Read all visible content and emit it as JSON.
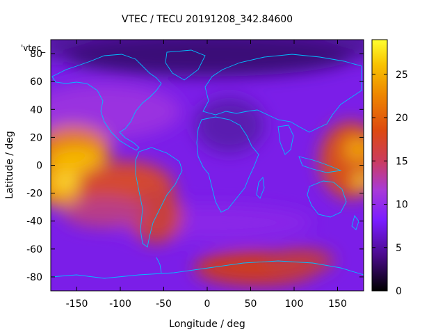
{
  "chart_data": {
    "type": "heatmap",
    "title": "VTEC / TECU 20191208_342.84600",
    "xlabel": "Longitude / deg",
    "ylabel": "Latitude / deg",
    "legend_label": "'vtec_",
    "xlim": [
      -180,
      180
    ],
    "ylim": [
      -90,
      90
    ],
    "x_ticks": [
      -150,
      -100,
      -50,
      0,
      50,
      100,
      150
    ],
    "y_ticks": [
      -80,
      -60,
      -40,
      -20,
      0,
      20,
      40,
      60,
      80
    ],
    "colorbar": {
      "range": [
        0,
        29
      ],
      "ticks": [
        0,
        5,
        10,
        15,
        20,
        25
      ],
      "palette": [
        "#000000",
        "#4a0a8a",
        "#7a1cff",
        "#a83ad8",
        "#cc3c5c",
        "#dd4a10",
        "#ee8600",
        "#f8c200",
        "#ffff30"
      ]
    },
    "coastline_color": "#00bfff",
    "grid": false,
    "regions": [
      {
        "lon": -155,
        "lat": 15,
        "value": 23
      },
      {
        "lon": -150,
        "lat": -15,
        "value": 27
      },
      {
        "lon": -100,
        "lat": -15,
        "value": 20
      },
      {
        "lon": -70,
        "lat": -40,
        "value": 15
      },
      {
        "lon": 170,
        "lat": 5,
        "value": 22
      },
      {
        "lon": 50,
        "lat": -75,
        "value": 16
      },
      {
        "lon": 20,
        "lat": 0,
        "value": 9
      },
      {
        "lon": 80,
        "lat": 70,
        "value": 3
      },
      {
        "lon": -60,
        "lat": 75,
        "value": 4
      },
      {
        "lon": 0,
        "lat": 40,
        "value": 7
      }
    ]
  }
}
